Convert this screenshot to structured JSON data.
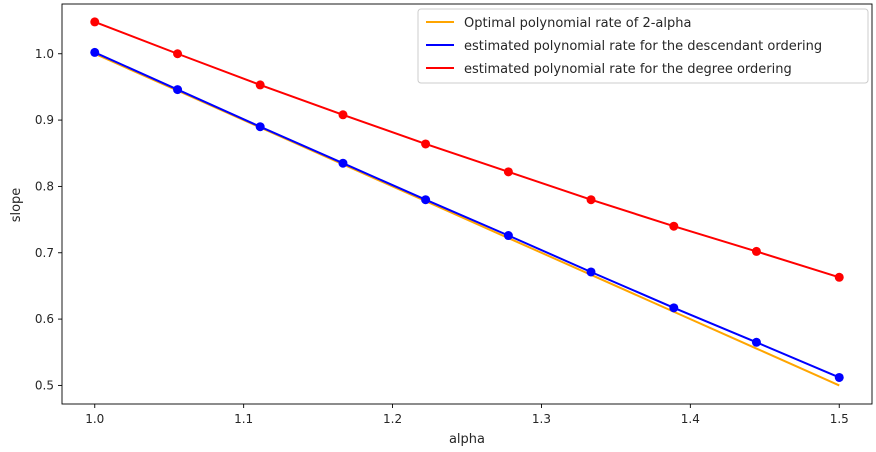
{
  "chart_data": {
    "type": "line",
    "title": "",
    "xlabel": "alpha",
    "ylabel": "slope",
    "xlim": [
      0.978,
      1.522
    ],
    "ylim": [
      0.472,
      1.075
    ],
    "grid": false,
    "legend_position": "top-right",
    "xticks": [
      1.0,
      1.1,
      1.2,
      1.3,
      1.4,
      1.5
    ],
    "xtick_labels": [
      "1.0",
      "1.1",
      "1.2",
      "1.3",
      "1.4",
      "1.5"
    ],
    "yticks": [
      0.5,
      0.6,
      0.7,
      0.8,
      0.9,
      1.0
    ],
    "ytick_labels": [
      "0.5",
      "0.6",
      "0.7",
      "0.8",
      "0.9",
      "1.0"
    ],
    "x": [
      1.0,
      1.0556,
      1.1111,
      1.1667,
      1.2222,
      1.2778,
      1.3333,
      1.3889,
      1.4444,
      1.5
    ],
    "series": [
      {
        "name": "Optimal polynomial rate of 2-alpha",
        "color": "#ffa500",
        "markers": false,
        "values": [
          1.0,
          0.9444,
          0.8889,
          0.8333,
          0.7778,
          0.7222,
          0.6667,
          0.6111,
          0.5556,
          0.5
        ]
      },
      {
        "name": "estimated polynomial rate for the descendant ordering",
        "color": "#0000ff",
        "markers": true,
        "values": [
          1.002,
          0.946,
          0.89,
          0.835,
          0.78,
          0.726,
          0.671,
          0.617,
          0.565,
          0.512
        ]
      },
      {
        "name": "estimated polynomial rate for the degree ordering",
        "color": "#ff0000",
        "markers": true,
        "values": [
          1.048,
          1.0,
          0.953,
          0.908,
          0.864,
          0.822,
          0.78,
          0.74,
          0.702,
          0.663
        ]
      }
    ]
  }
}
